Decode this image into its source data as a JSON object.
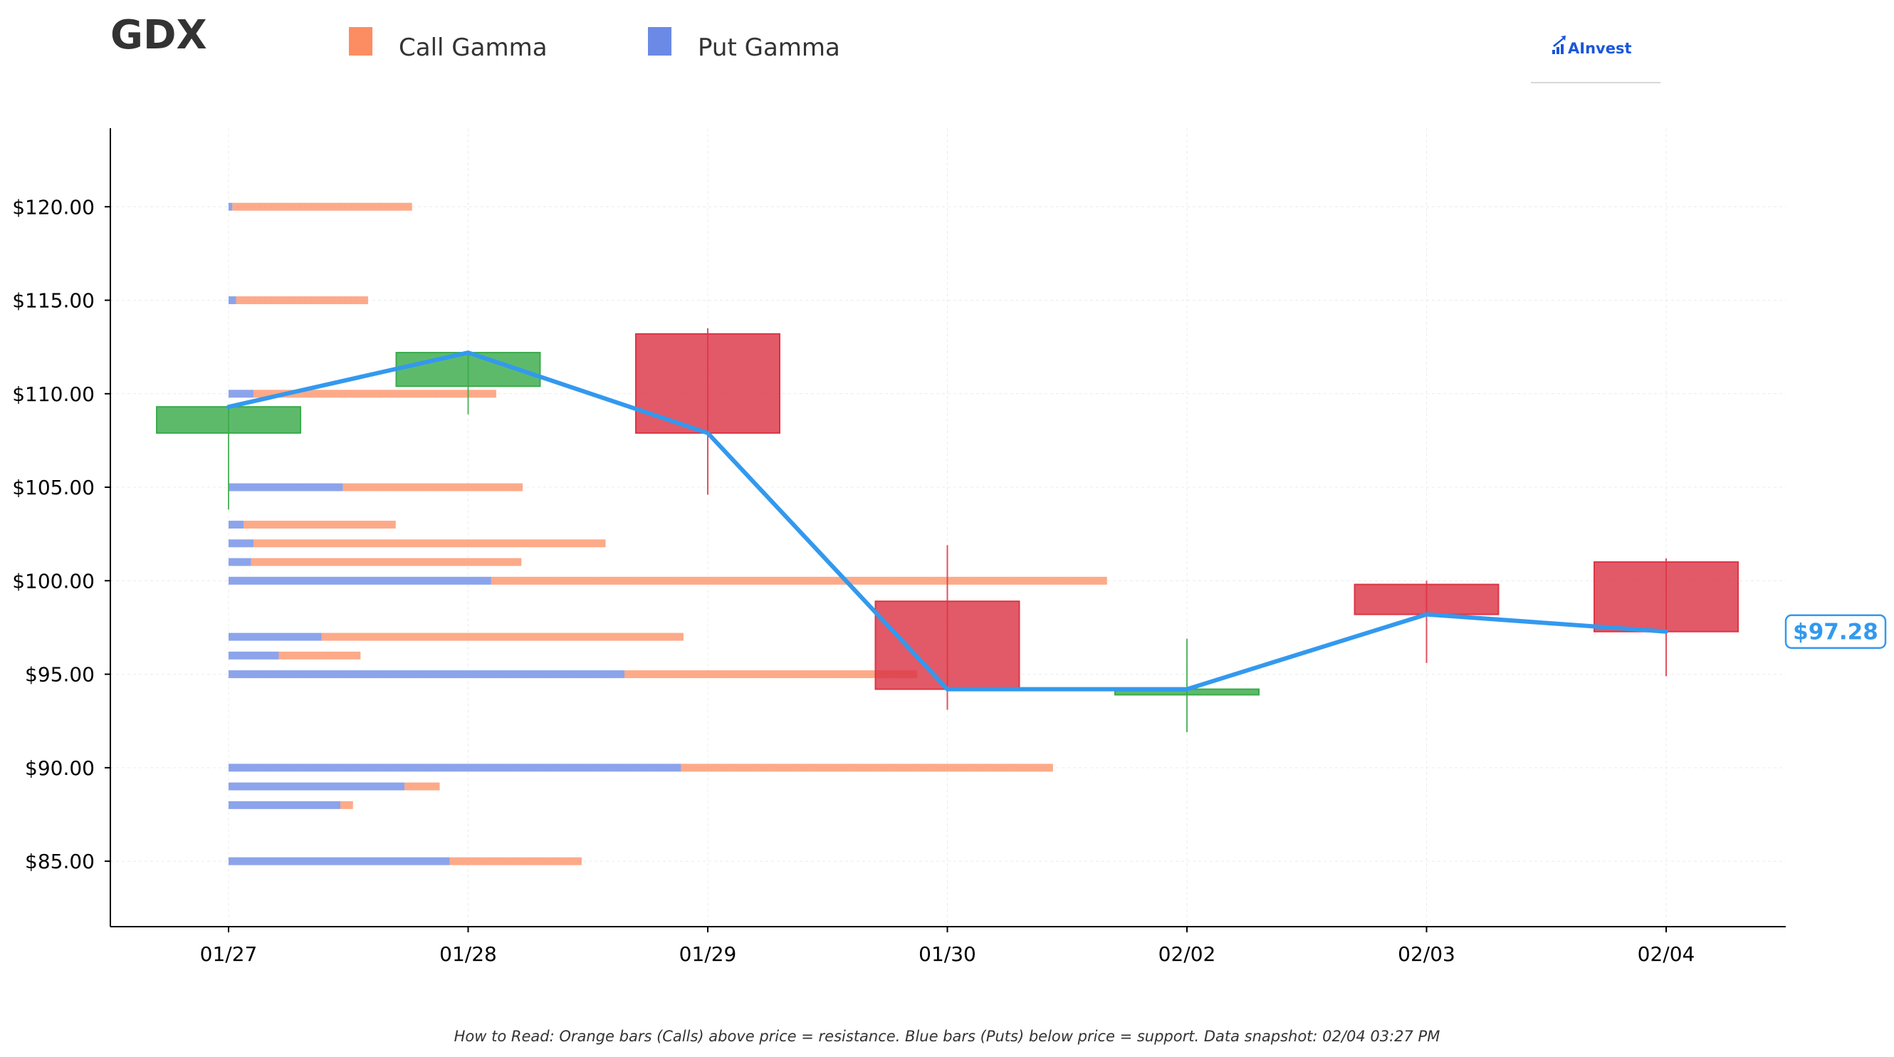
{
  "title": "GDX",
  "legend": [
    {
      "label": "Call Gamma",
      "color": "#fc8d62"
    },
    {
      "label": "Put Gamma",
      "color": "#6b8ae6"
    }
  ],
  "brand": {
    "text": "AInvest",
    "color": "#1a56db"
  },
  "footnote": "How to Read: Orange bars (Calls) above price = resistance. Blue bars (Puts) below price = support. Data snapshot: 02/04 03:27 PM",
  "current_price_label": "$97.28",
  "colors": {
    "up": "#3aab4a",
    "down": "#dc3545",
    "line": "#3399ee",
    "call": "#fc8d62",
    "put": "#6b8ae6"
  },
  "chart_data": {
    "type": "candlestick",
    "categories": [
      "01/27",
      "01/28",
      "01/29",
      "01/30",
      "02/02",
      "02/03",
      "02/04"
    ],
    "ylim": [
      81.5,
      124.2
    ],
    "yticks": [
      85,
      90,
      95,
      100,
      105,
      110,
      115,
      120
    ],
    "ytick_labels": [
      "$85.00",
      "$90.00",
      "$95.00",
      "$100.00",
      "$105.00",
      "$110.00",
      "$115.00",
      "$120.00"
    ],
    "grid": true,
    "candles": [
      {
        "date": "01/27",
        "open": 107.9,
        "high": 109.3,
        "low": 103.8,
        "close": 109.3
      },
      {
        "date": "01/28",
        "open": 110.4,
        "high": 112.2,
        "low": 108.9,
        "close": 112.2
      },
      {
        "date": "01/29",
        "open": 113.2,
        "high": 113.5,
        "low": 104.6,
        "close": 107.9
      },
      {
        "date": "01/30",
        "open": 98.9,
        "high": 101.9,
        "low": 93.1,
        "close": 94.2
      },
      {
        "date": "02/02",
        "open": 93.9,
        "high": 96.9,
        "low": 91.9,
        "close": 94.2
      },
      {
        "date": "02/03",
        "open": 99.8,
        "high": 100.0,
        "low": 95.6,
        "close": 98.2
      },
      {
        "date": "02/04",
        "open": 101.0,
        "high": 101.2,
        "low": 94.9,
        "close": 97.28
      }
    ],
    "close_line": [
      109.3,
      112.2,
      107.9,
      94.2,
      94.2,
      98.2,
      97.28
    ],
    "gamma_levels": [
      {
        "strike": 120,
        "put": 0.015,
        "call": 0.73
      },
      {
        "strike": 115,
        "put": 0.03,
        "call": 0.555
      },
      {
        "strike": 110,
        "put": 0.1,
        "call": 1.065
      },
      {
        "strike": 105,
        "put": 0.455,
        "call": 1.17
      },
      {
        "strike": 103,
        "put": 0.06,
        "call": 0.665
      },
      {
        "strike": 102,
        "put": 0.1,
        "call": 1.5
      },
      {
        "strike": 101,
        "put": 0.09,
        "call": 1.165
      },
      {
        "strike": 100,
        "put": 1.045,
        "call": 3.495
      },
      {
        "strike": 97,
        "put": 0.37,
        "call": 1.81
      },
      {
        "strike": 96,
        "put": 0.2,
        "call": 0.525
      },
      {
        "strike": 95,
        "put": 1.575,
        "call": 2.74
      },
      {
        "strike": 90,
        "put": 1.8,
        "call": 3.28
      },
      {
        "strike": 89,
        "put": 0.7,
        "call": 0.84
      },
      {
        "strike": 88,
        "put": 0.445,
        "call": 0.495
      },
      {
        "strike": 85,
        "put": 0.88,
        "call": 1.405
      }
    ]
  }
}
